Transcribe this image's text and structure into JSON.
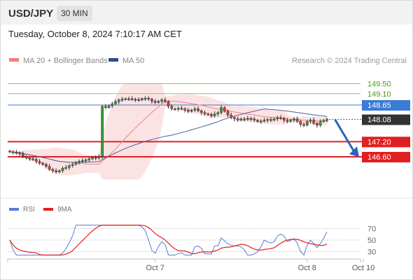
{
  "header": {
    "pair": "USD/JPY",
    "timeframe": "30 MIN"
  },
  "timestamp": "Tuesday, October 8, 2024 7:10:17 AM CET",
  "credit": "Research © 2024 Trading Central",
  "colors": {
    "ma20": "#f08080",
    "ma50": "#4a5fa0",
    "rsi": "#5b7bd5",
    "rsi_ma": "#e02020",
    "resistance": "#8ec46a",
    "pivot": "#3a7bd5",
    "support": "#e02020",
    "bull": "#3c9a3c",
    "bear": "#d04040",
    "arrow": "#2a65b8"
  },
  "chart_data": [
    {
      "type": "candlestick",
      "legend": [
        {
          "name": "MA 20 + Bollinger Bands",
          "color": "#f08080"
        },
        {
          "name": "MA 50",
          "color": "#2e4d8c"
        }
      ],
      "ylim": [
        145.5,
        150.2
      ],
      "levels": [
        {
          "value": 149.5,
          "label": "149.50",
          "kind": "resistance"
        },
        {
          "value": 149.1,
          "label": "149.10",
          "kind": "resistance"
        },
        {
          "value": 148.65,
          "label": "148.65",
          "kind": "pivot"
        },
        {
          "value": 147.2,
          "label": "147.20",
          "kind": "support"
        },
        {
          "value": 146.6,
          "label": "146.60",
          "kind": "support"
        }
      ],
      "last_price": "148.08",
      "forecast": "down toward 146.60",
      "close": [
        146.8,
        146.78,
        146.75,
        146.72,
        146.62,
        146.55,
        146.52,
        146.5,
        146.42,
        146.35,
        146.3,
        146.22,
        146.1,
        146.05,
        146.0,
        146.05,
        146.15,
        146.18,
        146.25,
        146.3,
        146.38,
        146.42,
        146.45,
        146.48,
        146.52,
        146.58,
        146.55,
        146.6,
        148.6,
        148.55,
        148.62,
        148.7,
        148.78,
        148.85,
        148.88,
        148.9,
        148.9,
        148.88,
        148.87,
        148.85,
        148.9,
        148.92,
        148.88,
        148.8,
        148.75,
        148.8,
        148.85,
        148.78,
        148.6,
        148.5,
        148.48,
        148.52,
        148.5,
        148.45,
        148.4,
        148.45,
        148.5,
        148.42,
        148.35,
        148.3,
        148.28,
        148.22,
        148.3,
        148.35,
        148.55,
        148.4,
        148.25,
        148.15,
        148.1,
        148.05,
        148.1,
        148.08,
        148.12,
        148.1,
        148.05,
        148.0,
        148.02,
        148.05,
        148.08,
        148.05,
        148.1,
        148.15,
        148.12,
        148.05,
        148.0,
        148.05,
        148.1,
        148.0,
        147.88,
        147.85,
        148.0,
        148.05,
        147.92,
        147.85,
        148.0,
        148.05,
        148.08
      ]
    },
    {
      "type": "line",
      "series": [
        {
          "name": "RSI"
        },
        {
          "name": "9MA"
        }
      ],
      "ylim": [
        20,
        80
      ],
      "ticks": [
        70,
        50,
        30
      ],
      "xticks": [
        {
          "label": "Oct 7",
          "index": 44
        },
        {
          "label": "Oct 8",
          "index": 90
        },
        {
          "label": "Oct 10",
          "index": 107
        }
      ]
    }
  ]
}
